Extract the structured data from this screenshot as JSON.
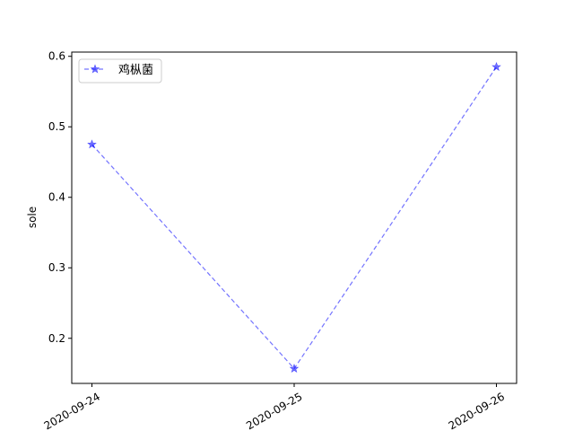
{
  "chart_data": {
    "type": "line",
    "title": "",
    "xlabel": "",
    "ylabel": "sole",
    "categories": [
      "2020-09-24",
      "2020-09-25",
      "2020-09-26"
    ],
    "series": [
      {
        "name": "鸡枞菌",
        "values": [
          0.475,
          0.157,
          0.585
        ],
        "color": "#0000ff",
        "line_style": "dashed",
        "marker": "star",
        "alpha": 0.55
      }
    ],
    "yticks": [
      0.2,
      0.3,
      0.4,
      0.5,
      0.6
    ],
    "ylim": [
      0.136,
      0.606
    ],
    "grid": false,
    "legend_position": "upper-left",
    "xtick_rotation": "rotated"
  }
}
